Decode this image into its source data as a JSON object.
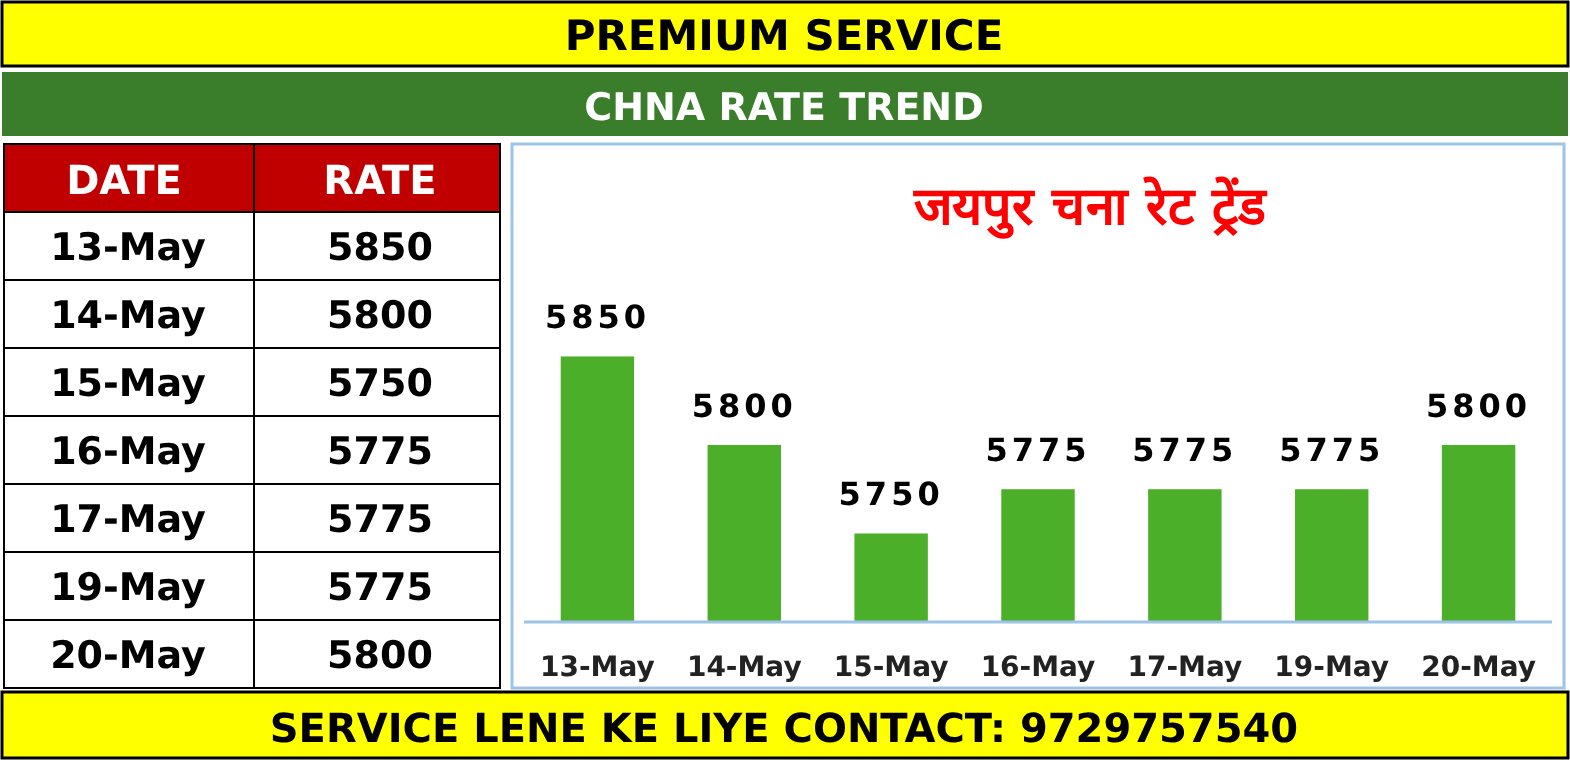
{
  "chart_data": {
    "type": "bar",
    "title": "जयपुर चना रेट ट्रेंड",
    "subtitle": "CHNA RATE TREND",
    "categories": [
      "13-May",
      "14-May",
      "15-May",
      "16-May",
      "17-May",
      "19-May",
      "20-May"
    ],
    "values": [
      5850,
      5800,
      5750,
      5775,
      5775,
      5775,
      5800
    ],
    "value_labels": [
      "5850",
      "5800",
      "5750",
      "5775",
      "5775",
      "5775",
      "5800"
    ],
    "color": "#4caf2a",
    "ylim": [
      5700,
      5970
    ],
    "annotations": [
      "PREMIUM SERVICE",
      "SERVICE LENE KE LIYE CONTACT: 9729757540",
      "DATE",
      "RATE"
    ]
  }
}
